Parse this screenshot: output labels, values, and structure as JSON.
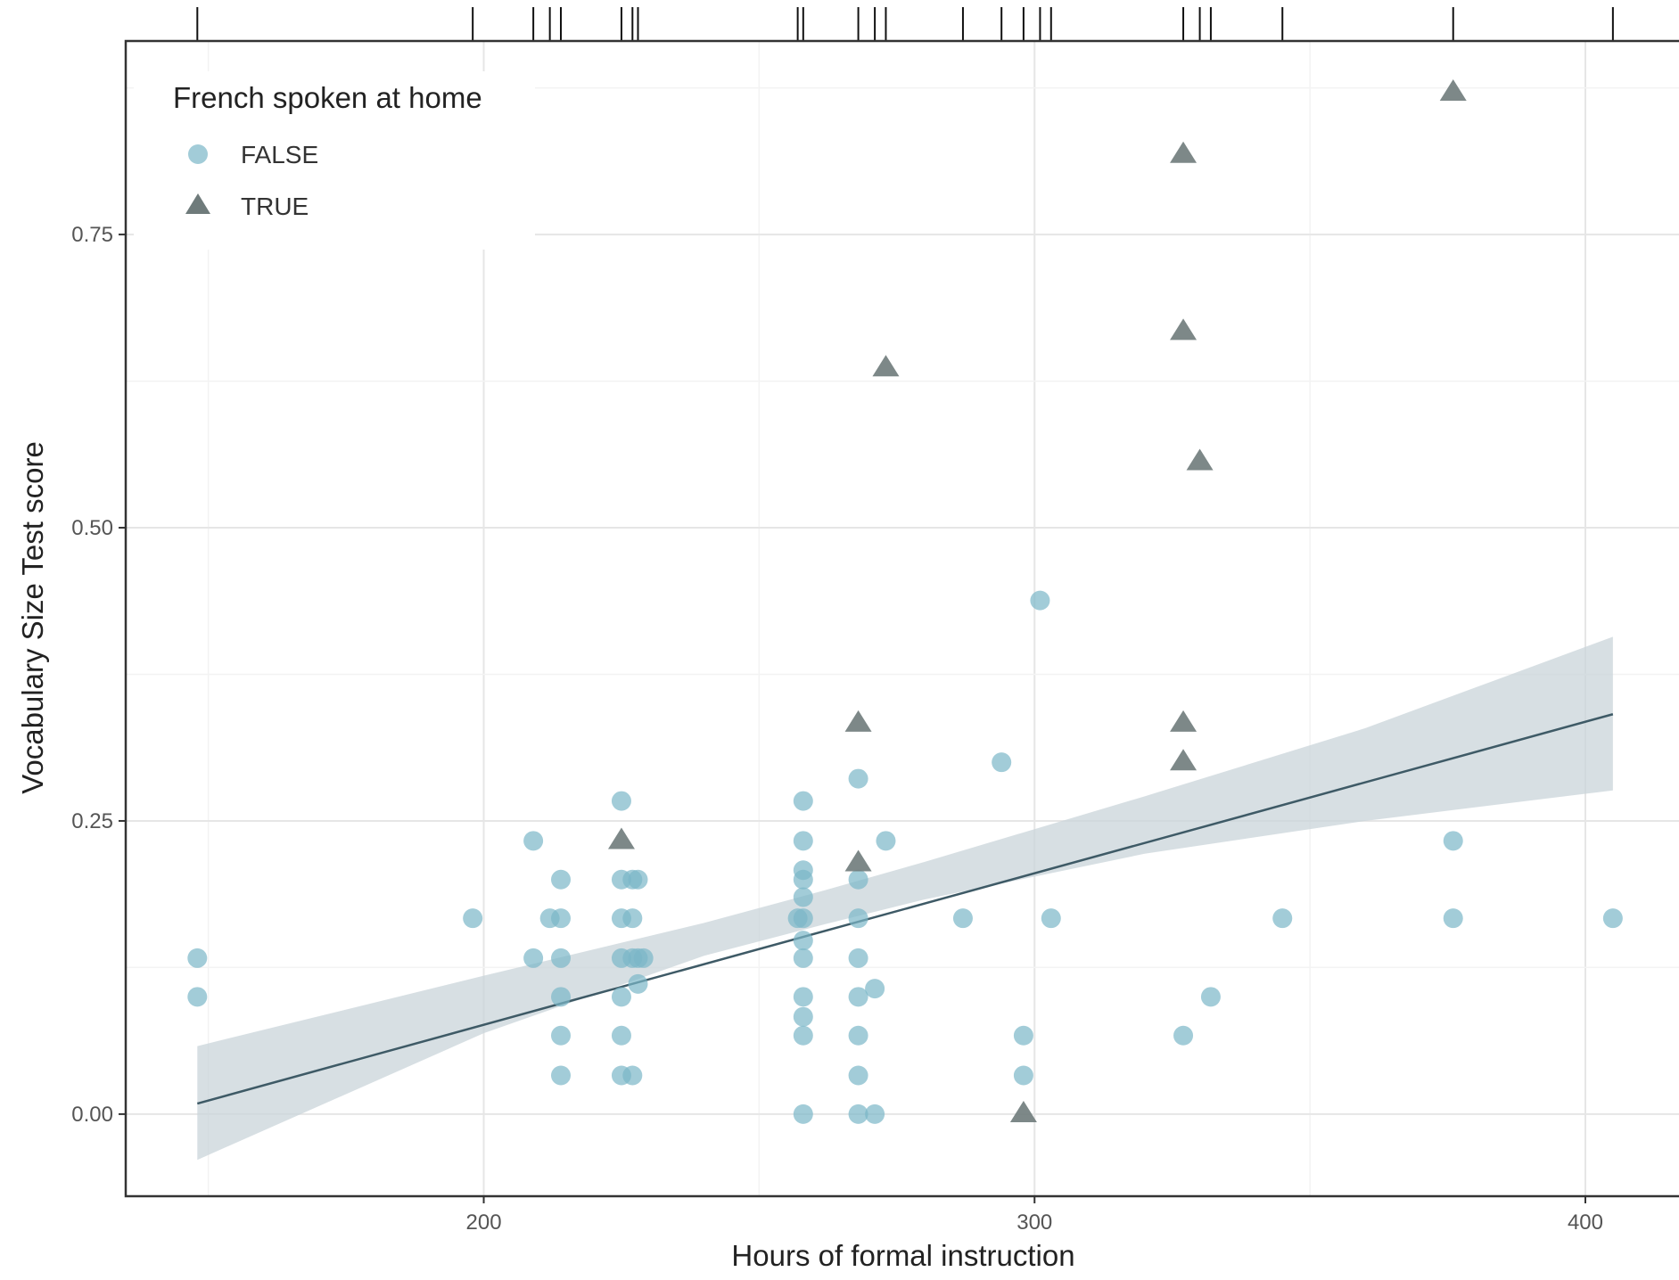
{
  "colors": {
    "false_points": "#7ab7c8",
    "true_points": "#6f7b7b",
    "fit_line": "#3e5a66",
    "confidence_band": "#c9d4d9",
    "grid_major": "#e6e6e6",
    "grid_minor": "#f3f3f3",
    "panel_border": "#333333",
    "rug": "#111111"
  },
  "chart_data": {
    "type": "scatter",
    "title": "",
    "xlabel": "Hours of formal instruction",
    "ylabel": "Vocabulary Size Test score",
    "xlim": [
      135,
      417
    ],
    "ylim": [
      -0.07,
      0.915
    ],
    "x_ticks": [
      200,
      300,
      400
    ],
    "x_tick_labels": [
      "200",
      "300",
      "400"
    ],
    "y_ticks": [
      0,
      0.25,
      0.5,
      0.75
    ],
    "y_tick_labels": [
      "0.00",
      "0.25",
      "0.50",
      "0.75"
    ],
    "grid": true,
    "rug": "top",
    "legend": {
      "title": "French spoken at home",
      "position": "top-left",
      "entries": [
        {
          "label": "FALSE",
          "shape": "circle",
          "color": "#7ab7c8"
        },
        {
          "label": "TRUE",
          "shape": "triangle",
          "color": "#6f7b7b"
        }
      ]
    },
    "series": [
      {
        "name": "FALSE",
        "shape": "circle",
        "points": [
          [
            148,
            0.133
          ],
          [
            148,
            0.1
          ],
          [
            198,
            0.167
          ],
          [
            209,
            0.233
          ],
          [
            209,
            0.133
          ],
          [
            212,
            0.167
          ],
          [
            214,
            0.2
          ],
          [
            214,
            0.167
          ],
          [
            214,
            0.133
          ],
          [
            214,
            0.1
          ],
          [
            214,
            0.067
          ],
          [
            214,
            0.033
          ],
          [
            225,
            0.267
          ],
          [
            225,
            0.2
          ],
          [
            225,
            0.167
          ],
          [
            225,
            0.133
          ],
          [
            225,
            0.1
          ],
          [
            225,
            0.067
          ],
          [
            225,
            0.033
          ],
          [
            227,
            0.2
          ],
          [
            227,
            0.167
          ],
          [
            227,
            0.133
          ],
          [
            227,
            0.033
          ],
          [
            228,
            0.2
          ],
          [
            228,
            0.133
          ],
          [
            228,
            0.111
          ],
          [
            229,
            0.133
          ],
          [
            257,
            0.167
          ],
          [
            258,
            0.267
          ],
          [
            258,
            0.233
          ],
          [
            258,
            0.208
          ],
          [
            258,
            0.2
          ],
          [
            258,
            0.185
          ],
          [
            258,
            0.167
          ],
          [
            258,
            0.148
          ],
          [
            258,
            0.133
          ],
          [
            258,
            0.1
          ],
          [
            258,
            0.083
          ],
          [
            258,
            0.067
          ],
          [
            258,
            0.0
          ],
          [
            268,
            0.286
          ],
          [
            268,
            0.2
          ],
          [
            268,
            0.167
          ],
          [
            268,
            0.133
          ],
          [
            268,
            0.1
          ],
          [
            268,
            0.067
          ],
          [
            268,
            0.033
          ],
          [
            268,
            0.0
          ],
          [
            271,
            0.107
          ],
          [
            271,
            0.0
          ],
          [
            273,
            0.233
          ],
          [
            287,
            0.167
          ],
          [
            294,
            0.3
          ],
          [
            298,
            0.067
          ],
          [
            298,
            0.033
          ],
          [
            301,
            0.438
          ],
          [
            303,
            0.167
          ],
          [
            327,
            0.067
          ],
          [
            332,
            0.1
          ],
          [
            345,
            0.167
          ],
          [
            376,
            0.233
          ],
          [
            376,
            0.167
          ],
          [
            405,
            0.167
          ]
        ]
      },
      {
        "name": "TRUE",
        "shape": "triangle",
        "points": [
          [
            225,
            0.233
          ],
          [
            268,
            0.333
          ],
          [
            268,
            0.214
          ],
          [
            273,
            0.636
          ],
          [
            298,
            0.0
          ],
          [
            327,
            0.818
          ],
          [
            327,
            0.667
          ],
          [
            327,
            0.333
          ],
          [
            327,
            0.3
          ],
          [
            330,
            0.556
          ],
          [
            376,
            0.871
          ]
        ]
      }
    ],
    "fit_line": {
      "x": [
        148,
        405
      ],
      "y": [
        0.009,
        0.341
      ]
    },
    "confidence_band": {
      "x": [
        148,
        200,
        240,
        262,
        280,
        320,
        360,
        405
      ],
      "lower": [
        -0.039,
        0.069,
        0.135,
        0.162,
        0.183,
        0.222,
        0.25,
        0.276
      ],
      "upper": [
        0.058,
        0.118,
        0.163,
        0.191,
        0.215,
        0.271,
        0.329,
        0.407
      ]
    },
    "rug_x": [
      148,
      198,
      209,
      212,
      214,
      225,
      227,
      228,
      257,
      258,
      268,
      271,
      273,
      287,
      294,
      298,
      301,
      303,
      327,
      330,
      332,
      345,
      376,
      405
    ]
  }
}
